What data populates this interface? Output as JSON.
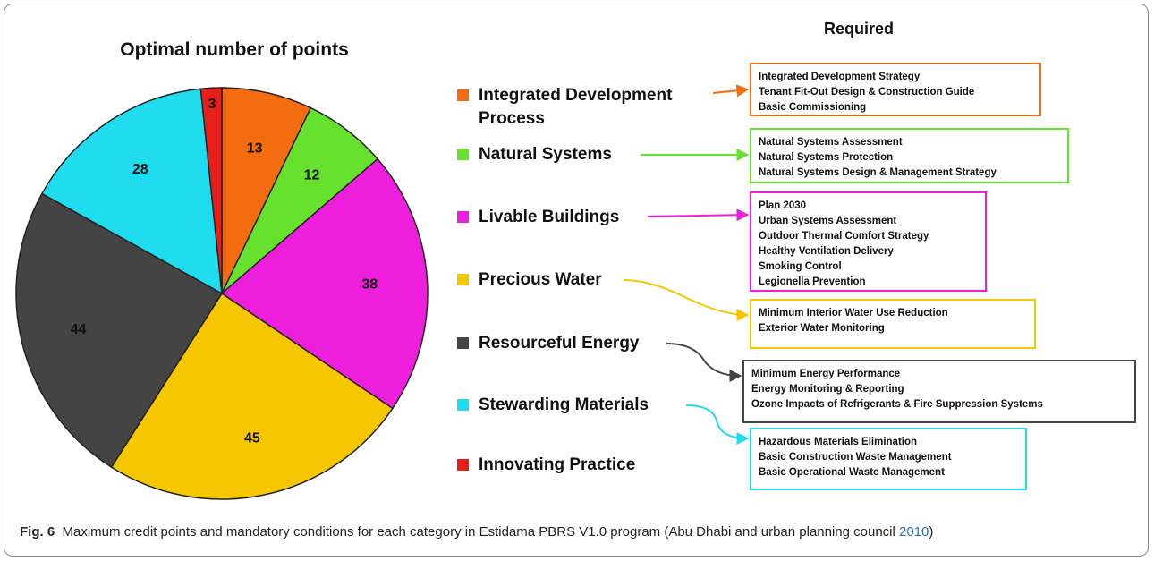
{
  "chart_data": {
    "type": "pie",
    "title": "Optimal number of points",
    "categories": [
      "Integrated Development Process",
      "Natural Systems",
      "Livable Buildings",
      "Precious Water",
      "Resourceful Energy",
      "Stewarding Materials",
      "Innovating Practice"
    ],
    "values": [
      13,
      12,
      38,
      45,
      44,
      28,
      3
    ],
    "colors": [
      "#f36d10",
      "#66e22e",
      "#ee1fdc",
      "#f6c700",
      "#444444",
      "#1fdcee",
      "#e5201a"
    ],
    "required_title": "Required",
    "required": [
      [
        "Integrated Development Strategy",
        "Tenant Fit-Out Design & Construction Guide",
        "Basic Commissioning"
      ],
      [
        "Natural Systems Assessment",
        "Natural Systems Protection",
        "Natural Systems Design & Management Strategy"
      ],
      [
        "Plan 2030",
        "Urban Systems Assessment",
        "Outdoor Thermal Comfort Strategy",
        "Healthy Ventilation Delivery",
        "Smoking Control",
        "Legionella Prevention"
      ],
      [
        "Minimum Interior Water Use Reduction",
        "Exterior Water Monitoring"
      ],
      [
        "Minimum Energy Performance",
        "Energy Monitoring & Reporting",
        "Ozone Impacts of Refrigerants & Fire Suppression Systems"
      ],
      [
        "Hazardous Materials Elimination",
        "Basic Construction Waste Management",
        "Basic Operational Waste Management"
      ]
    ]
  },
  "caption": {
    "label": "Fig. 6",
    "text": "Maximum credit points and mandatory conditions for each category in Estidama PBRS V1.0 program (Abu Dhabi and urban planning council",
    "link": "2010",
    "end": ")"
  }
}
